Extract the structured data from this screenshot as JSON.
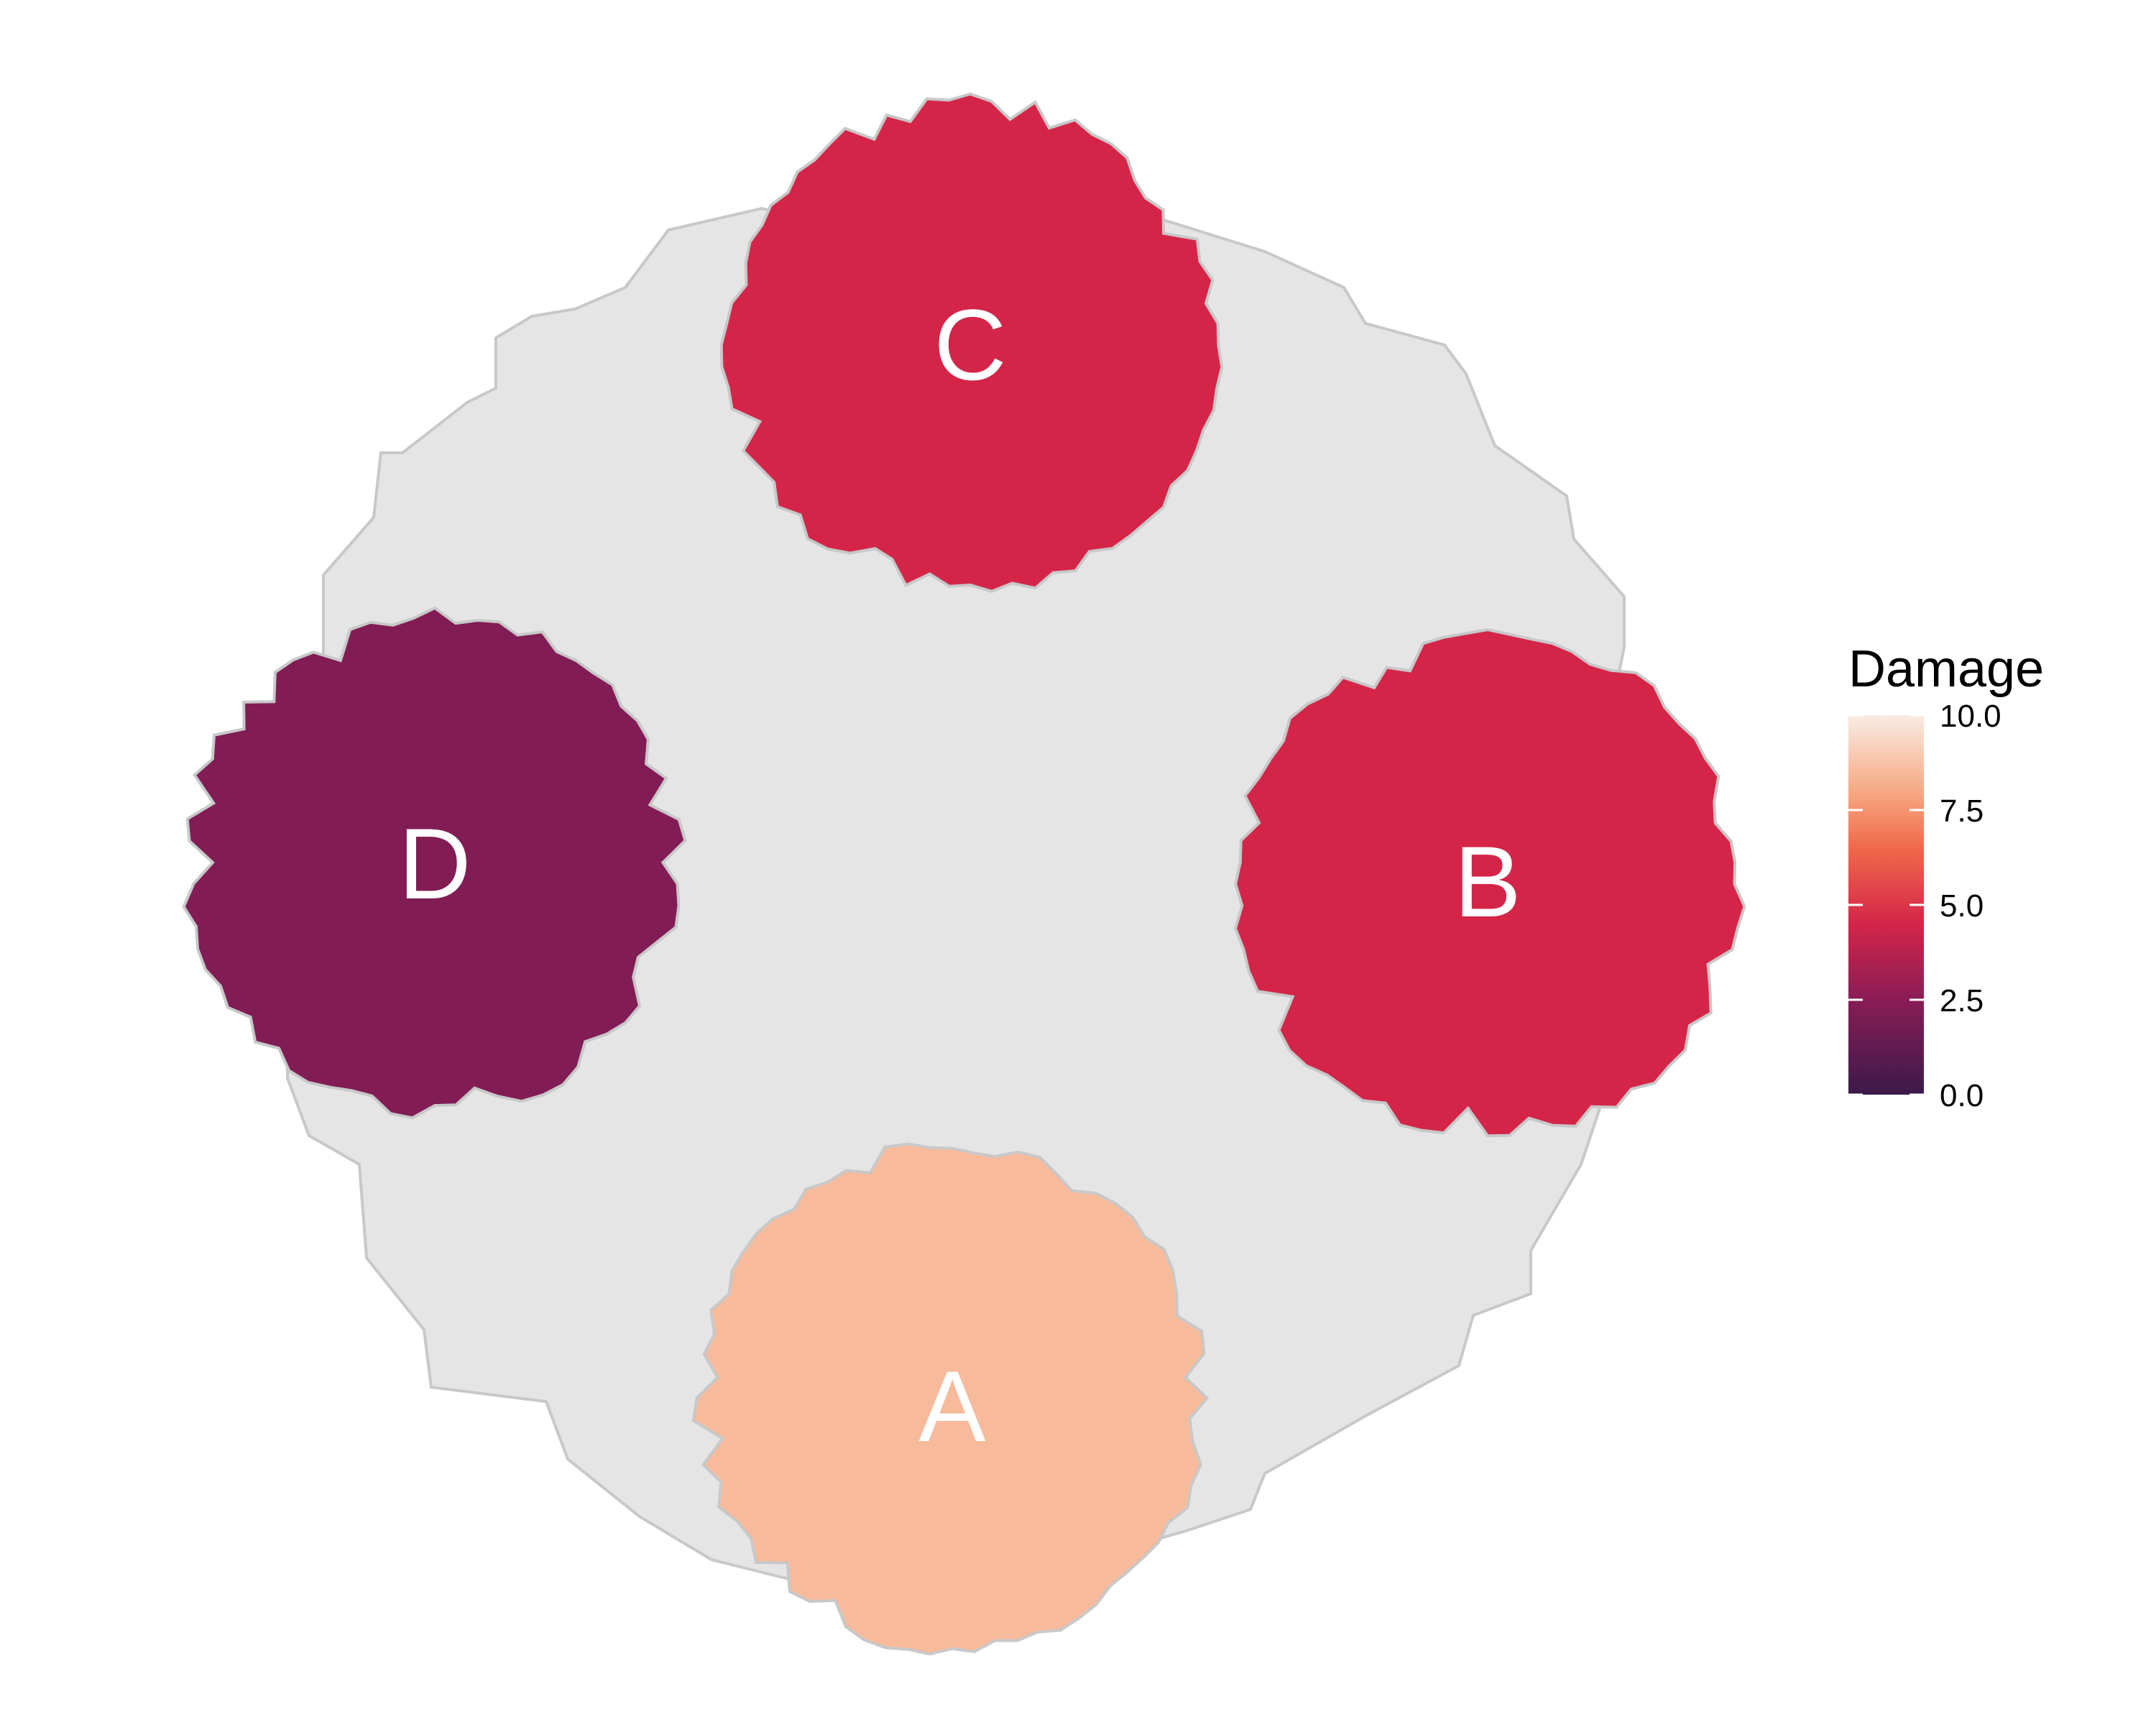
{
  "chart_data": {
    "type": "heatmap",
    "background_region": {
      "color": "#e5e5e5",
      "border": "#c8c8c8"
    },
    "regions": [
      {
        "label": "A",
        "damage": 8.5
      },
      {
        "label": "B",
        "damage": 4.5
      },
      {
        "label": "C",
        "damage": 4.5
      },
      {
        "label": "D",
        "damage": 2.2
      }
    ],
    "legend": {
      "title": "Damage",
      "range": [
        0,
        10
      ],
      "ticks": [
        "0.0",
        "2.5",
        "5.0",
        "7.5",
        "10.0"
      ],
      "placement": "right",
      "palette": [
        "#3b1a4a",
        "#8a1c56",
        "#d42549",
        "#f0694a",
        "#f6a983",
        "#f9ece4"
      ]
    }
  }
}
